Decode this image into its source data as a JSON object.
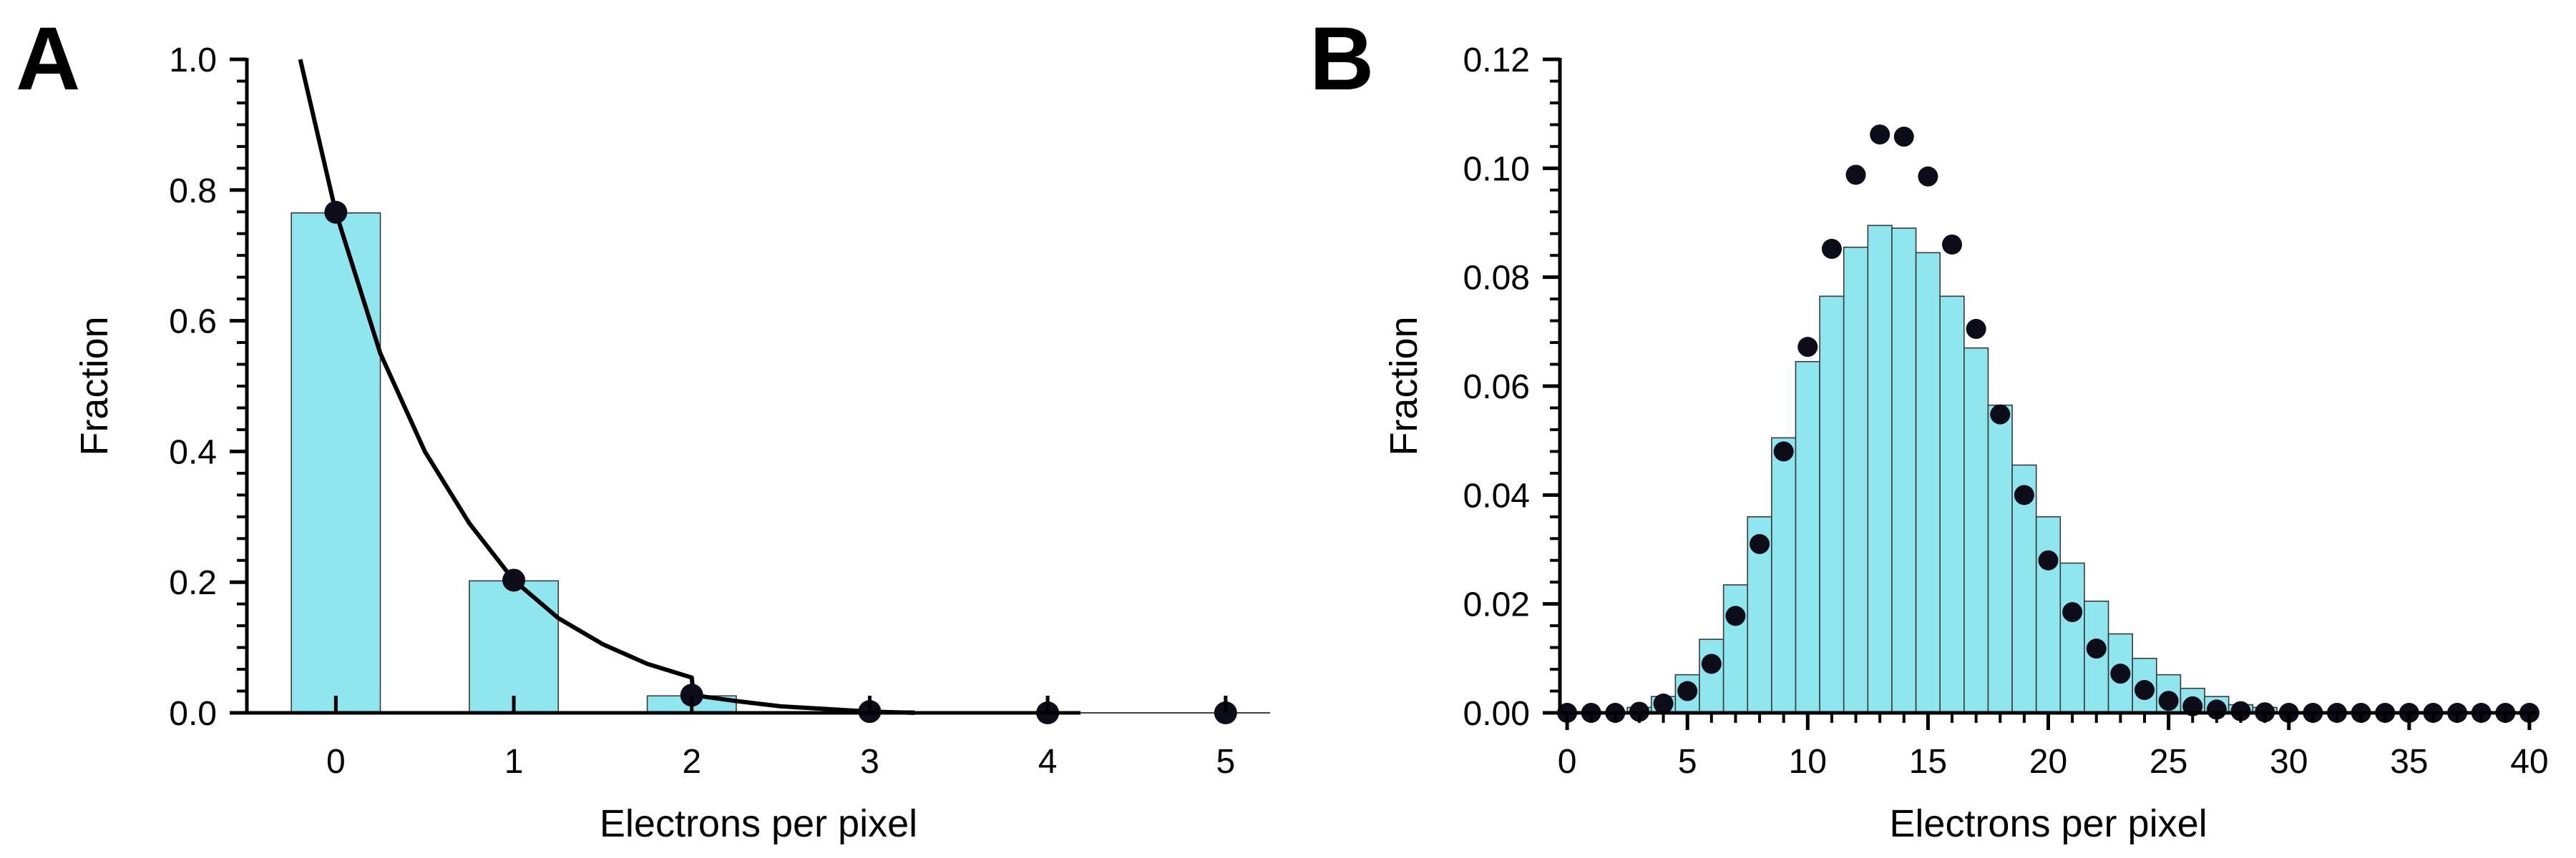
{
  "chart_data": [
    {
      "panel_label": "A",
      "type": "bar",
      "xlabel": "Electrons per pixel",
      "ylabel": "Fraction",
      "xlim": [
        -0.5,
        5.25
      ],
      "ylim": [
        0,
        1.0
      ],
      "x_ticks": [
        0,
        1,
        2,
        3,
        4,
        5
      ],
      "y_ticks": [
        0.0,
        0.2,
        0.4,
        0.6,
        0.8,
        1.0
      ],
      "y_tick_labels": [
        "0.0",
        "0.2",
        "0.4",
        "0.6",
        "0.8",
        "1.0"
      ],
      "bars": {
        "x": [
          0,
          1,
          2,
          3,
          4,
          5
        ],
        "values": [
          0.765,
          0.202,
          0.026,
          0.003,
          0.0,
          0.0
        ],
        "width": 0.5,
        "color": "#8fe6ef"
      },
      "points": {
        "x": [
          0,
          1,
          2,
          3,
          4,
          5
        ],
        "values": [
          0.766,
          0.203,
          0.027,
          0.002,
          0.0,
          0.0
        ]
      },
      "curve": {
        "x": [
          -0.2,
          0,
          0.25,
          0.5,
          0.75,
          1.0,
          1.25,
          1.5,
          1.75,
          2.0,
          2.01,
          2.25,
          2.5,
          2.75,
          3.0,
          3.25
        ],
        "values": [
          1.0,
          0.766,
          0.55,
          0.4,
          0.29,
          0.203,
          0.145,
          0.105,
          0.075,
          0.054,
          0.027,
          0.018,
          0.01,
          0.006,
          0.002,
          0.0
        ]
      },
      "grid": false
    },
    {
      "panel_label": "B",
      "type": "bar",
      "xlabel": "Electrons per pixel",
      "ylabel": "Fraction",
      "xlim": [
        -0.3,
        40.3
      ],
      "ylim": [
        0,
        0.12
      ],
      "x_ticks": [
        0,
        5,
        10,
        15,
        20,
        25,
        30,
        35,
        40
      ],
      "y_ticks": [
        0.0,
        0.02,
        0.04,
        0.06,
        0.08,
        0.1,
        0.12
      ],
      "y_tick_labels": [
        "0.00",
        "0.02",
        "0.04",
        "0.06",
        "0.08",
        "0.10",
        "0.12"
      ],
      "bars": {
        "x": [
          0,
          1,
          2,
          3,
          4,
          5,
          6,
          7,
          8,
          9,
          10,
          11,
          12,
          13,
          14,
          15,
          16,
          17,
          18,
          19,
          20,
          21,
          22,
          23,
          24,
          25,
          26,
          27,
          28,
          29,
          30,
          31,
          32,
          33,
          34,
          35,
          36,
          37,
          38,
          39,
          40
        ],
        "values": [
          0,
          0,
          0,
          0.001,
          0.003,
          0.007,
          0.0135,
          0.0235,
          0.036,
          0.0505,
          0.0645,
          0.0765,
          0.0855,
          0.0895,
          0.089,
          0.0845,
          0.0765,
          0.067,
          0.0565,
          0.0455,
          0.036,
          0.0275,
          0.0205,
          0.0145,
          0.01,
          0.007,
          0.0045,
          0.003,
          0.0015,
          0.001,
          0,
          0,
          0,
          0,
          0,
          0,
          0,
          0,
          0,
          0,
          0
        ],
        "width": 1.0,
        "color": "#8fe6ef"
      },
      "points": {
        "x": [
          0,
          1,
          2,
          3,
          4,
          5,
          6,
          7,
          8,
          9,
          10,
          11,
          12,
          13,
          14,
          15,
          16,
          17,
          18,
          19,
          20,
          21,
          22,
          23,
          24,
          25,
          26,
          27,
          28,
          29,
          30,
          31,
          32,
          33,
          34,
          35,
          36,
          37,
          38,
          39,
          40
        ],
        "values": [
          0,
          0,
          0,
          0.0002,
          0.0017,
          0.004,
          0.009,
          0.0178,
          0.031,
          0.048,
          0.0672,
          0.0852,
          0.0988,
          0.1062,
          0.1058,
          0.0985,
          0.086,
          0.0705,
          0.0548,
          0.04,
          0.028,
          0.0185,
          0.0118,
          0.0072,
          0.0042,
          0.0022,
          0.0012,
          0.0006,
          0.0003,
          0.0001,
          0,
          0,
          0,
          0,
          0,
          0,
          0,
          0,
          0,
          0,
          0
        ]
      },
      "grid": false
    }
  ]
}
